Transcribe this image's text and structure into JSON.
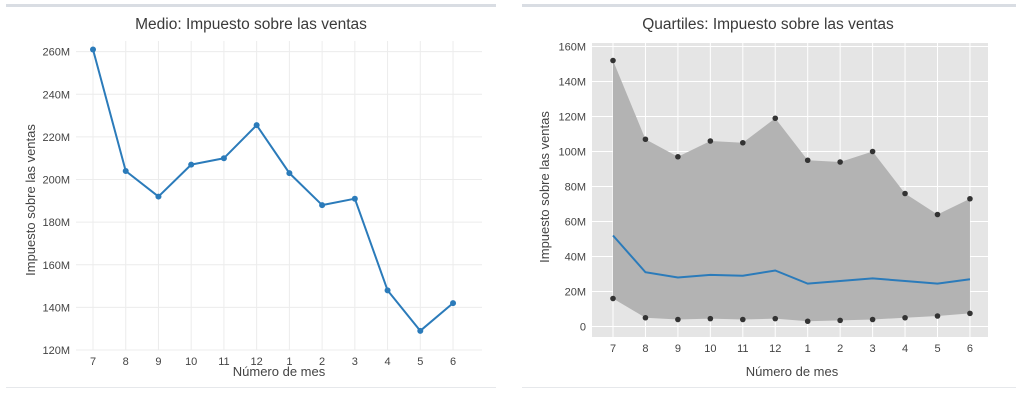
{
  "chart_data": [
    {
      "type": "line",
      "title": "Medio:  Impuesto sobre las ventas",
      "xlabel": "Número de mes",
      "ylabel": "Impuesto sobre las ventas",
      "categories": [
        "7",
        "8",
        "9",
        "10",
        "11",
        "12",
        "1",
        "2",
        "3",
        "4",
        "5",
        "6"
      ],
      "series": [
        {
          "values": [
            261,
            204,
            192,
            207,
            210,
            225.5,
            203,
            188,
            191,
            148,
            129,
            142
          ]
        }
      ],
      "ylim": [
        120,
        265
      ],
      "yticks": [
        120,
        140,
        160,
        180,
        200,
        220,
        240,
        260
      ],
      "ytick_labels": [
        "120M",
        "140M",
        "160M",
        "180M",
        "200M",
        "220M",
        "240M",
        "260M"
      ],
      "grid": true,
      "colors": {
        "line": "#2b7bba"
      }
    },
    {
      "type": "area",
      "title": "Quartiles: Impuesto sobre las ventas",
      "xlabel": "Número de mes",
      "ylabel": "Impuesto sobre las ventas",
      "categories": [
        "7",
        "8",
        "9",
        "10",
        "11",
        "12",
        "1",
        "2",
        "3",
        "4",
        "5",
        "6"
      ],
      "series": [
        {
          "role": "upper",
          "values": [
            152,
            107,
            97,
            106,
            105,
            119,
            95,
            94,
            100,
            76,
            64,
            73
          ]
        },
        {
          "role": "lower",
          "values": [
            16,
            5,
            4,
            4.5,
            4,
            4.5,
            3,
            3.5,
            4,
            5,
            6,
            7.5
          ]
        },
        {
          "role": "middle",
          "values": [
            52,
            31,
            28,
            29.5,
            29,
            32,
            24.5,
            26,
            27.5,
            26,
            24.5,
            27
          ]
        }
      ],
      "ylim": [
        -6,
        162
      ],
      "yticks": [
        0,
        20,
        40,
        60,
        80,
        100,
        120,
        140,
        160
      ],
      "ytick_labels": [
        "0",
        "20M",
        "40M",
        "60M",
        "80M",
        "100M",
        "120M",
        "140M",
        "160M"
      ],
      "grid": true,
      "colors": {
        "plot_bg": "#e5e5e5",
        "band": "#b3b3b3",
        "line": "#2b7bba",
        "points": "#333333"
      }
    }
  ]
}
